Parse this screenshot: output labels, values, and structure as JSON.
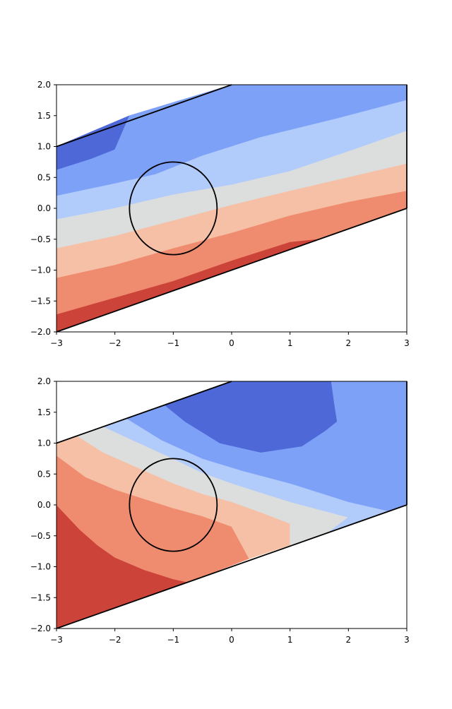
{
  "chart_data": [
    {
      "type": "contourf",
      "title": "",
      "xlabel": "",
      "ylabel": "",
      "xlim": [
        -3,
        3
      ],
      "ylim": [
        -2,
        2
      ],
      "xticks": [
        "−3",
        "−2",
        "−1",
        "0",
        "1",
        "2",
        "3"
      ],
      "yticks": [
        "2.0",
        "1.5",
        "1.0",
        "0.5",
        "0.0",
        "−0.5",
        "−1.0",
        "−1.5",
        "−2.0"
      ],
      "xtick_values": [
        -3,
        -2,
        -1,
        0,
        1,
        2,
        3
      ],
      "ytick_values": [
        2.0,
        1.5,
        1.0,
        0.5,
        0.0,
        -0.5,
        -1.0,
        -1.5,
        -2.0
      ],
      "colormap": "coolwarm",
      "level_colors": [
        "#4e68d8",
        "#7ea1f8",
        "#b1cbfb",
        "#dcdddd",
        "#f5c0a6",
        "#ef8c6f",
        "#cc4339"
      ],
      "domain_boundary": {
        "upper_line": [
          [
            -3,
            1.0
          ],
          [
            0,
            2.0
          ]
        ],
        "lower_line": [
          [
            -3,
            -2.0
          ],
          [
            3,
            0.0
          ]
        ],
        "right_edge": [
          [
            3,
            0.0
          ],
          [
            3,
            2.0
          ]
        ]
      },
      "circle": {
        "center": [
          -1.0,
          0.0
        ],
        "radius_x": 0.75,
        "radius_y": 0.75
      },
      "bands": [
        {
          "level": 0,
          "polygon": [
            [
              -3,
              0.62
            ],
            [
              -2.4,
              0.8
            ],
            [
              -2.0,
              0.95
            ],
            [
              -1.75,
              1.5
            ],
            [
              -3,
              1.0
            ]
          ]
        },
        {
          "level": 1,
          "polygon": [
            [
              -3,
              0.2
            ],
            [
              -2.0,
              0.4
            ],
            [
              -1.3,
              0.55
            ],
            [
              -0.5,
              0.85
            ],
            [
              0.5,
              1.15
            ],
            [
              1.8,
              1.45
            ],
            [
              3,
              1.75
            ],
            [
              3,
              2.0
            ],
            [
              0,
              2.0
            ],
            [
              -1.75,
              1.5
            ],
            [
              -2.0,
              0.95
            ],
            [
              -2.4,
              0.8
            ],
            [
              -3,
              0.62
            ]
          ]
        },
        {
          "level": 2,
          "polygon": [
            [
              -3,
              -0.18
            ],
            [
              -2.0,
              0.0
            ],
            [
              -1.0,
              0.22
            ],
            [
              0,
              0.38
            ],
            [
              1.0,
              0.6
            ],
            [
              2.0,
              0.92
            ],
            [
              3,
              1.25
            ],
            [
              3,
              1.75
            ],
            [
              1.8,
              1.45
            ],
            [
              0.5,
              1.15
            ],
            [
              -0.5,
              0.85
            ],
            [
              -1.3,
              0.55
            ],
            [
              -2.0,
              0.4
            ],
            [
              -3,
              0.2
            ]
          ]
        },
        {
          "level": 3,
          "polygon": [
            [
              -3,
              -0.65
            ],
            [
              -2.0,
              -0.45
            ],
            [
              -1.0,
              -0.2
            ],
            [
              0,
              0.05
            ],
            [
              1.0,
              0.28
            ],
            [
              2.0,
              0.5
            ],
            [
              3,
              0.72
            ],
            [
              3,
              1.25
            ],
            [
              2.0,
              0.92
            ],
            [
              1.0,
              0.6
            ],
            [
              0,
              0.38
            ],
            [
              -1.0,
              0.22
            ],
            [
              -2.0,
              0.0
            ],
            [
              -3,
              -0.18
            ]
          ]
        },
        {
          "level": 4,
          "polygon": [
            [
              -3,
              -1.13
            ],
            [
              -2.0,
              -0.92
            ],
            [
              -1.0,
              -0.65
            ],
            [
              0,
              -0.4
            ],
            [
              1.0,
              -0.12
            ],
            [
              2.0,
              0.1
            ],
            [
              3,
              0.28
            ],
            [
              3,
              0.72
            ],
            [
              2.0,
              0.5
            ],
            [
              1.0,
              0.28
            ],
            [
              0,
              0.05
            ],
            [
              -1.0,
              -0.2
            ],
            [
              -2.0,
              -0.45
            ],
            [
              -3,
              -0.65
            ]
          ]
        },
        {
          "level": 5,
          "polygon": [
            [
              -3,
              -1.72
            ],
            [
              -2.0,
              -1.45
            ],
            [
              -1.0,
              -1.18
            ],
            [
              0,
              -0.85
            ],
            [
              1.0,
              -0.55
            ],
            [
              1.5,
              -0.5
            ],
            [
              3,
              0.0
            ],
            [
              3,
              0.28
            ],
            [
              2.0,
              0.1
            ],
            [
              1.0,
              -0.12
            ],
            [
              0,
              -0.4
            ],
            [
              -1.0,
              -0.65
            ],
            [
              -2.0,
              -0.92
            ],
            [
              -3,
              -1.13
            ]
          ]
        },
        {
          "level": 6,
          "polygon": [
            [
              -3,
              -2.0
            ],
            [
              1.5,
              -0.5
            ],
            [
              1.0,
              -0.55
            ],
            [
              0,
              -0.85
            ],
            [
              -1.0,
              -1.18
            ],
            [
              -2.0,
              -1.45
            ],
            [
              -3,
              -1.72
            ]
          ]
        }
      ]
    },
    {
      "type": "contourf",
      "title": "",
      "xlabel": "",
      "ylabel": "",
      "xlim": [
        -3,
        3
      ],
      "ylim": [
        -2,
        2
      ],
      "xticks": [
        "−3",
        "−2",
        "−1",
        "0",
        "1",
        "2",
        "3"
      ],
      "yticks": [
        "2.0",
        "1.5",
        "1.0",
        "0.5",
        "0.0",
        "−0.5",
        "−1.0",
        "−1.5",
        "−2.0"
      ],
      "xtick_values": [
        -3,
        -2,
        -1,
        0,
        1,
        2,
        3
      ],
      "ytick_values": [
        2.0,
        1.5,
        1.0,
        0.5,
        0.0,
        -0.5,
        -1.0,
        -1.5,
        -2.0
      ],
      "colormap": "coolwarm",
      "level_colors": [
        "#4e68d8",
        "#7ea1f8",
        "#b1cbfb",
        "#dcdddd",
        "#f5c0a6",
        "#ef8c6f",
        "#cc4339"
      ],
      "domain_boundary": {
        "upper_line": [
          [
            -3,
            1.0
          ],
          [
            0,
            2.0
          ]
        ],
        "lower_line": [
          [
            -3,
            -2.0
          ],
          [
            3,
            0.0
          ]
        ],
        "right_edge": [
          [
            3,
            0.0
          ],
          [
            3,
            2.0
          ]
        ]
      },
      "circle": {
        "center": [
          -1.0,
          0.0
        ],
        "radius_x": 0.75,
        "radius_y": 0.75
      },
      "bands": [
        {
          "level": 6,
          "polygon": [
            [
              -3,
              -2.0
            ],
            [
              -3,
              0.0
            ],
            [
              -2.6,
              -0.4
            ],
            [
              -2.3,
              -0.65
            ],
            [
              -2.0,
              -0.85
            ],
            [
              -1.5,
              -1.05
            ],
            [
              -1.0,
              -1.2
            ],
            [
              -0.75,
              -1.25
            ],
            [
              -3,
              -2.0
            ]
          ]
        },
        {
          "level": 5,
          "polygon": [
            [
              -3,
              0.0
            ],
            [
              -3,
              0.8
            ],
            [
              -2.5,
              0.45
            ],
            [
              -2.0,
              0.25
            ],
            [
              -1.5,
              0.1
            ],
            [
              -1.0,
              -0.05
            ],
            [
              -0.5,
              -0.18
            ],
            [
              0,
              -0.35
            ],
            [
              0.3,
              -0.87
            ],
            [
              -0.75,
              -1.25
            ],
            [
              -1.0,
              -1.2
            ],
            [
              -1.5,
              -1.05
            ],
            [
              -2.0,
              -0.85
            ],
            [
              -2.3,
              -0.65
            ],
            [
              -2.6,
              -0.4
            ]
          ]
        },
        {
          "level": 4,
          "polygon": [
            [
              -3,
              0.8
            ],
            [
              -3,
              1.0
            ],
            [
              -2.65,
              1.12
            ],
            [
              -2.2,
              0.85
            ],
            [
              -1.6,
              0.6
            ],
            [
              -1.0,
              0.35
            ],
            [
              -0.5,
              0.18
            ],
            [
              0,
              0.05
            ],
            [
              0.5,
              -0.12
            ],
            [
              1.0,
              -0.3
            ],
            [
              1.0,
              -0.65
            ],
            [
              0.3,
              -0.87
            ],
            [
              0,
              -0.35
            ],
            [
              -0.5,
              -0.18
            ],
            [
              -1.0,
              -0.05
            ],
            [
              -1.5,
              0.1
            ],
            [
              -2.0,
              0.25
            ],
            [
              -2.5,
              0.45
            ]
          ]
        },
        {
          "level": 3,
          "polygon": [
            [
              -2.65,
              1.12
            ],
            [
              -2.2,
              1.27
            ],
            [
              -1.7,
              1.05
            ],
            [
              -1.0,
              0.75
            ],
            [
              -0.5,
              0.52
            ],
            [
              0,
              0.35
            ],
            [
              0.5,
              0.2
            ],
            [
              1.0,
              0.05
            ],
            [
              1.6,
              -0.1
            ],
            [
              2.0,
              -0.2
            ],
            [
              1.65,
              -0.45
            ],
            [
              1.0,
              -0.65
            ],
            [
              1.0,
              -0.3
            ],
            [
              0.5,
              -0.12
            ],
            [
              0,
              0.05
            ],
            [
              -0.5,
              0.18
            ],
            [
              -1.0,
              0.35
            ],
            [
              -1.6,
              0.6
            ],
            [
              -2.2,
              0.85
            ]
          ]
        },
        {
          "level": 2,
          "polygon": [
            [
              -2.2,
              1.27
            ],
            [
              -1.8,
              1.4
            ],
            [
              -1.2,
              1.05
            ],
            [
              -0.5,
              0.75
            ],
            [
              0.2,
              0.55
            ],
            [
              1.0,
              0.35
            ],
            [
              2.0,
              0.05
            ],
            [
              2.7,
              -0.1
            ],
            [
              2.6,
              -0.13
            ],
            [
              1.65,
              -0.45
            ],
            [
              2.0,
              -0.2
            ],
            [
              1.6,
              -0.1
            ],
            [
              1.0,
              0.05
            ],
            [
              0.5,
              0.2
            ],
            [
              0,
              0.35
            ],
            [
              -0.5,
              0.52
            ],
            [
              -1.0,
              0.75
            ],
            [
              -1.7,
              1.05
            ]
          ]
        },
        {
          "level": 1,
          "polygon": [
            [
              -1.8,
              1.4
            ],
            [
              -1.15,
              1.62
            ],
            [
              -0.8,
              1.35
            ],
            [
              -0.2,
              1.0
            ],
            [
              0.5,
              0.85
            ],
            [
              1.2,
              0.95
            ],
            [
              1.6,
              1.2
            ],
            [
              1.8,
              1.35
            ],
            [
              1.75,
              1.65
            ],
            [
              1.7,
              2.0
            ],
            [
              3,
              2.0
            ],
            [
              3,
              0.0
            ],
            [
              2.6,
              -0.13
            ],
            [
              2.7,
              -0.1
            ],
            [
              2.0,
              0.05
            ],
            [
              1.0,
              0.35
            ],
            [
              0.2,
              0.55
            ],
            [
              -0.5,
              0.75
            ],
            [
              -1.2,
              1.05
            ]
          ]
        },
        {
          "level": 0,
          "polygon": [
            [
              -1.15,
              1.62
            ],
            [
              0,
              2.0
            ],
            [
              1.7,
              2.0
            ],
            [
              1.75,
              1.65
            ],
            [
              1.8,
              1.35
            ],
            [
              1.6,
              1.2
            ],
            [
              1.2,
              0.95
            ],
            [
              0.5,
              0.85
            ],
            [
              -0.2,
              1.0
            ],
            [
              -0.8,
              1.35
            ]
          ]
        }
      ]
    }
  ]
}
